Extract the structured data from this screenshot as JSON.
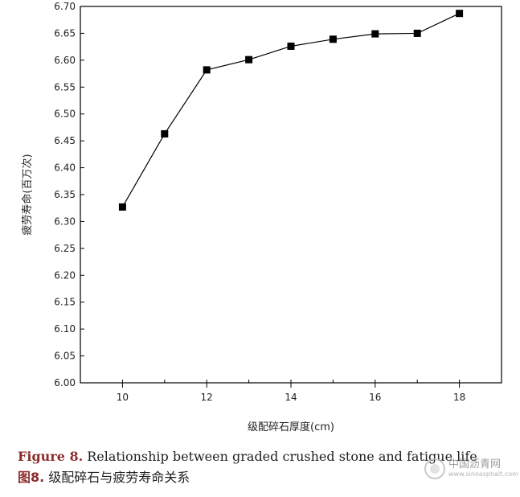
{
  "chart_data": {
    "type": "line",
    "title": "",
    "xlabel": "级配碎石厚度(cm)",
    "ylabel": "疲劳寿命(百万次)",
    "x": [
      10,
      11,
      12,
      13,
      14,
      15,
      16,
      17,
      18
    ],
    "xlim": [
      9,
      19
    ],
    "ylim": [
      6.0,
      6.7
    ],
    "xticks": [
      "10",
      "12",
      "14",
      "16",
      "18"
    ],
    "yticks": [
      "6.00",
      "6.05",
      "6.10",
      "6.15",
      "6.20",
      "6.25",
      "6.30",
      "6.35",
      "6.40",
      "6.45",
      "6.50",
      "6.55",
      "6.60",
      "6.65",
      "6.70"
    ],
    "series": [
      {
        "values": [
          6.327,
          6.463,
          6.582,
          6.601,
          6.626,
          6.639,
          6.649,
          6.65,
          6.687
        ],
        "marker": "square",
        "color": "#000000"
      }
    ],
    "grid": false,
    "legend": "none"
  },
  "caption": {
    "en_label": "Figure 8.",
    "en_text": " Relationship between graded crushed stone and fatigue life",
    "zh_label": "图8.",
    "zh_text": " 级配碎石与疲劳寿命关系"
  },
  "watermark": {
    "name": "中国沥青网",
    "url": "www.sinoasphalt.com"
  }
}
